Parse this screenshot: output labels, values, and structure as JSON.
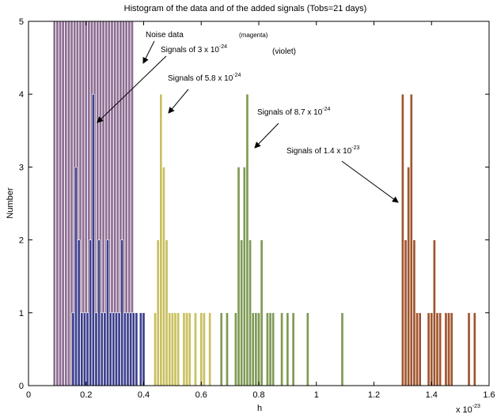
{
  "chart_data": {
    "type": "bar",
    "title": "Histogram of the data and of the added signals (Tobs=21 days)",
    "xlabel": "h",
    "ylabel": "Number",
    "x_exponent_label": "x 10",
    "x_exponent": "-23",
    "xlim": [
      0,
      1.6
    ],
    "ylim": [
      0,
      5
    ],
    "x_ticks": [
      "0",
      "0.2",
      "0.4",
      "0.6",
      "0.8",
      "1",
      "1.2",
      "1.4",
      "1.6"
    ],
    "y_ticks": [
      "0",
      "1",
      "2",
      "3",
      "4",
      "5"
    ],
    "grid": false,
    "series": [
      {
        "color": "#8e6d93",
        "x": [
          0.09,
          0.1,
          0.11,
          0.12,
          0.13,
          0.14,
          0.15,
          0.16,
          0.17,
          0.18,
          0.19,
          0.2,
          0.21,
          0.22,
          0.23,
          0.24,
          0.25,
          0.26,
          0.27,
          0.28,
          0.29,
          0.3,
          0.31,
          0.32,
          0.33,
          0.34,
          0.35,
          0.36
        ],
        "values": [
          5,
          5,
          5,
          5,
          5,
          5,
          5,
          5,
          5,
          5,
          5,
          5,
          5,
          5,
          5,
          5,
          5,
          5,
          5,
          5,
          5,
          5,
          5,
          5,
          5,
          5,
          5,
          5
        ]
      },
      {
        "color": "#3c3f8c",
        "x": [
          0.155,
          0.165,
          0.175,
          0.185,
          0.195,
          0.205,
          0.215,
          0.225,
          0.235,
          0.245,
          0.255,
          0.265,
          0.275,
          0.285,
          0.295,
          0.305,
          0.315,
          0.325,
          0.335,
          0.345,
          0.355,
          0.365,
          0.375,
          0.39,
          0.4
        ],
        "values": [
          1,
          3,
          2,
          1,
          1,
          1,
          2,
          4,
          1,
          2,
          1,
          1,
          2,
          1,
          1,
          1,
          1,
          2,
          1,
          1,
          1,
          1,
          1,
          1,
          1
        ]
      },
      {
        "color": "#c9c060",
        "x": [
          0.44,
          0.45,
          0.46,
          0.47,
          0.48,
          0.49,
          0.5,
          0.51,
          0.52,
          0.54,
          0.55,
          0.56,
          0.58,
          0.6,
          0.61,
          0.63
        ],
        "values": [
          1,
          2,
          4,
          3,
          2,
          1,
          1,
          1,
          1,
          1,
          1,
          1,
          1,
          1,
          1,
          1
        ]
      },
      {
        "color": "#7f9a55",
        "x": [
          0.67,
          0.69,
          0.72,
          0.73,
          0.74,
          0.75,
          0.76,
          0.77,
          0.78,
          0.79,
          0.8,
          0.81,
          0.83,
          0.84,
          0.85,
          0.88,
          0.9,
          0.92,
          0.97,
          1.09
        ],
        "values": [
          1,
          1,
          1,
          3,
          2,
          3,
          4,
          2,
          1,
          1,
          1,
          2,
          1,
          1,
          1,
          1,
          1,
          1,
          1,
          1
        ]
      },
      {
        "color": "#a0552e",
        "x": [
          1.3,
          1.31,
          1.32,
          1.33,
          1.34,
          1.35,
          1.36,
          1.39,
          1.4,
          1.41,
          1.42,
          1.43,
          1.45,
          1.46,
          1.47,
          1.53,
          1.55
        ],
        "values": [
          4,
          2,
          3,
          4,
          2,
          1,
          1,
          1,
          1,
          2,
          1,
          1,
          1,
          1,
          1,
          1,
          1
        ]
      }
    ],
    "annotations": {
      "noise_data": "Noise data",
      "magenta": "(magenta)",
      "violet": "(violet)",
      "sig1": {
        "text": "Signals of 3 x 10",
        "exp": "-24"
      },
      "sig2": {
        "text": "Signals of 5.8 x 10",
        "exp": "-24"
      },
      "sig3": {
        "text": "Signals of 8.7 x 10",
        "exp": "-24"
      },
      "sig4": {
        "text": "Signals of  1.4 x 10",
        "exp": "-23"
      }
    }
  }
}
